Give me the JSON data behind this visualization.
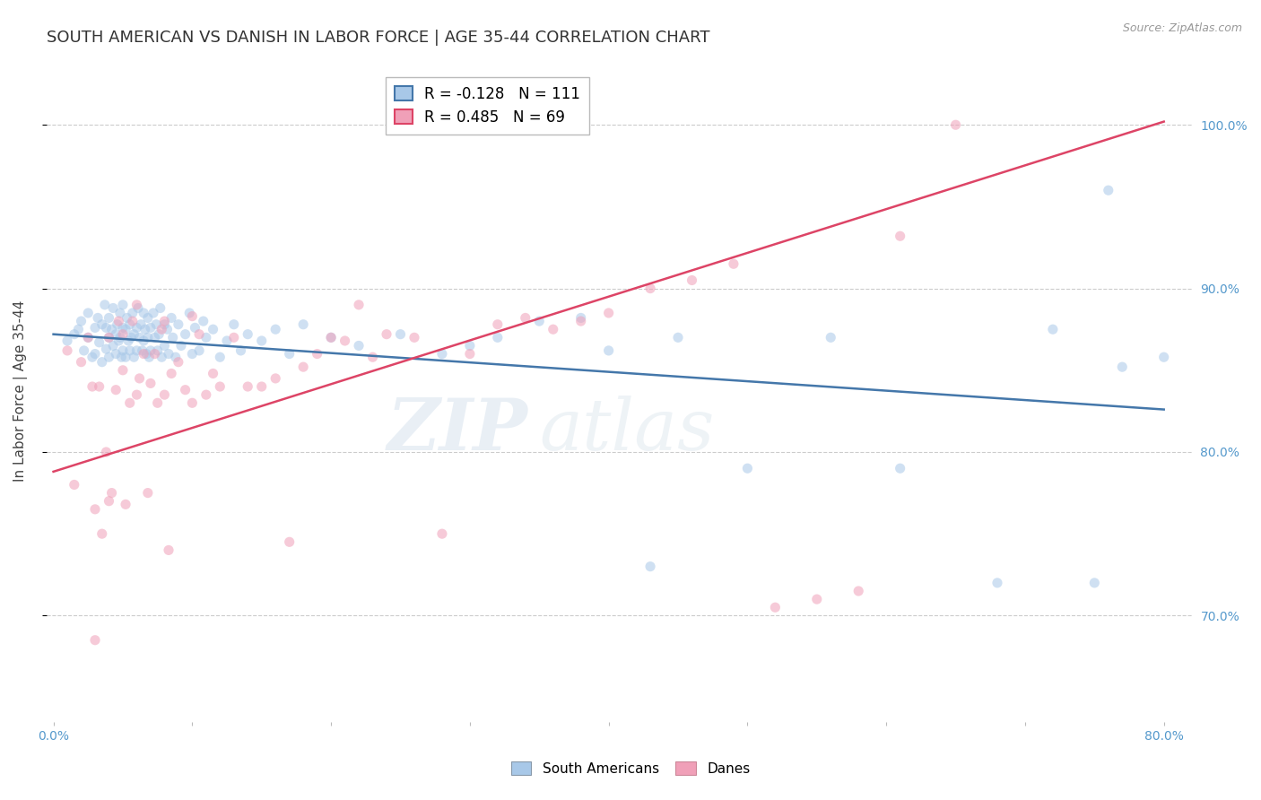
{
  "title": "SOUTH AMERICAN VS DANISH IN LABOR FORCE | AGE 35-44 CORRELATION CHART",
  "source": "Source: ZipAtlas.com",
  "ylabel": "In Labor Force | Age 35-44",
  "xlim": [
    -0.005,
    0.82
  ],
  "ylim": [
    0.635,
    1.04
  ],
  "xtick_positions": [
    0.0,
    0.1,
    0.2,
    0.3,
    0.4,
    0.5,
    0.6,
    0.7,
    0.8
  ],
  "xticklabels": [
    "0.0%",
    "",
    "",
    "",
    "",
    "",
    "",
    "",
    "80.0%"
  ],
  "ytick_positions": [
    0.7,
    0.8,
    0.9,
    1.0
  ],
  "ytick_labels": [
    "70.0%",
    "80.0%",
    "90.0%",
    "100.0%"
  ],
  "blue_R": -0.128,
  "blue_N": 111,
  "pink_R": 0.485,
  "pink_N": 69,
  "blue_color": "#a8c8e8",
  "pink_color": "#f0a0b8",
  "blue_line_color": "#4477aa",
  "pink_line_color": "#dd4466",
  "watermark": "ZIPatlas",
  "legend_blue_label": "South Americans",
  "legend_pink_label": "Danes",
  "blue_line_x0": 0.0,
  "blue_line_x1": 0.8,
  "blue_line_y0": 0.872,
  "blue_line_y1": 0.826,
  "pink_line_x0": 0.0,
  "pink_line_x1": 0.8,
  "pink_line_y0": 0.788,
  "pink_line_y1": 1.002,
  "grid_color": "#cccccc",
  "bg_color": "#ffffff",
  "title_fontsize": 13,
  "axis_label_fontsize": 11,
  "tick_fontsize": 10,
  "tick_color": "#5599cc",
  "marker_size": 65,
  "marker_alpha": 0.55,
  "line_width": 1.8,
  "blue_scatter_x": [
    0.01,
    0.015,
    0.018,
    0.02,
    0.022,
    0.025,
    0.025,
    0.028,
    0.03,
    0.03,
    0.032,
    0.033,
    0.035,
    0.035,
    0.037,
    0.038,
    0.038,
    0.04,
    0.04,
    0.04,
    0.042,
    0.043,
    0.043,
    0.045,
    0.045,
    0.046,
    0.047,
    0.048,
    0.048,
    0.049,
    0.05,
    0.05,
    0.05,
    0.052,
    0.052,
    0.053,
    0.054,
    0.055,
    0.055,
    0.056,
    0.057,
    0.058,
    0.058,
    0.06,
    0.06,
    0.061,
    0.062,
    0.063,
    0.064,
    0.065,
    0.065,
    0.066,
    0.067,
    0.068,
    0.068,
    0.069,
    0.07,
    0.07,
    0.072,
    0.073,
    0.074,
    0.075,
    0.076,
    0.077,
    0.078,
    0.08,
    0.08,
    0.082,
    0.083,
    0.085,
    0.086,
    0.088,
    0.09,
    0.092,
    0.095,
    0.098,
    0.1,
    0.102,
    0.105,
    0.108,
    0.11,
    0.115,
    0.12,
    0.125,
    0.13,
    0.135,
    0.14,
    0.15,
    0.16,
    0.17,
    0.18,
    0.2,
    0.22,
    0.25,
    0.28,
    0.32,
    0.38,
    0.43,
    0.5,
    0.56,
    0.61,
    0.68,
    0.72,
    0.75,
    0.76,
    0.77,
    0.8,
    0.3,
    0.35,
    0.4,
    0.45
  ],
  "blue_scatter_y": [
    0.868,
    0.872,
    0.875,
    0.88,
    0.862,
    0.885,
    0.87,
    0.858,
    0.86,
    0.876,
    0.882,
    0.867,
    0.855,
    0.878,
    0.89,
    0.863,
    0.876,
    0.87,
    0.882,
    0.858,
    0.875,
    0.865,
    0.888,
    0.872,
    0.86,
    0.878,
    0.868,
    0.885,
    0.87,
    0.858,
    0.876,
    0.862,
    0.89,
    0.875,
    0.858,
    0.882,
    0.868,
    0.878,
    0.862,
    0.87,
    0.885,
    0.872,
    0.858,
    0.876,
    0.862,
    0.888,
    0.87,
    0.878,
    0.862,
    0.885,
    0.868,
    0.875,
    0.86,
    0.882,
    0.87,
    0.858,
    0.876,
    0.862,
    0.885,
    0.87,
    0.878,
    0.862,
    0.872,
    0.888,
    0.858,
    0.878,
    0.865,
    0.875,
    0.86,
    0.882,
    0.87,
    0.858,
    0.878,
    0.865,
    0.872,
    0.885,
    0.86,
    0.876,
    0.862,
    0.88,
    0.87,
    0.875,
    0.858,
    0.868,
    0.878,
    0.862,
    0.872,
    0.868,
    0.875,
    0.86,
    0.878,
    0.87,
    0.865,
    0.872,
    0.86,
    0.87,
    0.882,
    0.73,
    0.79,
    0.87,
    0.79,
    0.72,
    0.875,
    0.72,
    0.96,
    0.852,
    0.858,
    0.865,
    0.88,
    0.862,
    0.87
  ],
  "pink_scatter_x": [
    0.01,
    0.015,
    0.02,
    0.025,
    0.028,
    0.03,
    0.033,
    0.035,
    0.038,
    0.04,
    0.042,
    0.045,
    0.047,
    0.05,
    0.052,
    0.055,
    0.057,
    0.06,
    0.062,
    0.065,
    0.068,
    0.07,
    0.073,
    0.075,
    0.078,
    0.08,
    0.083,
    0.085,
    0.09,
    0.095,
    0.1,
    0.105,
    0.11,
    0.115,
    0.12,
    0.13,
    0.14,
    0.15,
    0.16,
    0.17,
    0.18,
    0.19,
    0.2,
    0.21,
    0.22,
    0.23,
    0.24,
    0.26,
    0.28,
    0.3,
    0.32,
    0.34,
    0.36,
    0.38,
    0.4,
    0.43,
    0.46,
    0.49,
    0.52,
    0.55,
    0.58,
    0.61,
    0.65,
    0.06,
    0.08,
    0.1,
    0.03,
    0.04,
    0.05
  ],
  "pink_scatter_y": [
    0.862,
    0.78,
    0.855,
    0.87,
    0.84,
    0.765,
    0.84,
    0.75,
    0.8,
    0.87,
    0.775,
    0.838,
    0.88,
    0.85,
    0.768,
    0.83,
    0.88,
    0.835,
    0.845,
    0.86,
    0.775,
    0.842,
    0.86,
    0.83,
    0.875,
    0.835,
    0.74,
    0.848,
    0.855,
    0.838,
    0.83,
    0.872,
    0.835,
    0.848,
    0.84,
    0.87,
    0.84,
    0.84,
    0.845,
    0.745,
    0.852,
    0.86,
    0.87,
    0.868,
    0.89,
    0.858,
    0.872,
    0.87,
    0.75,
    0.86,
    0.878,
    0.882,
    0.875,
    0.88,
    0.885,
    0.9,
    0.905,
    0.915,
    0.705,
    0.71,
    0.715,
    0.932,
    1.0,
    0.89,
    0.88,
    0.883,
    0.685,
    0.77,
    0.872
  ]
}
